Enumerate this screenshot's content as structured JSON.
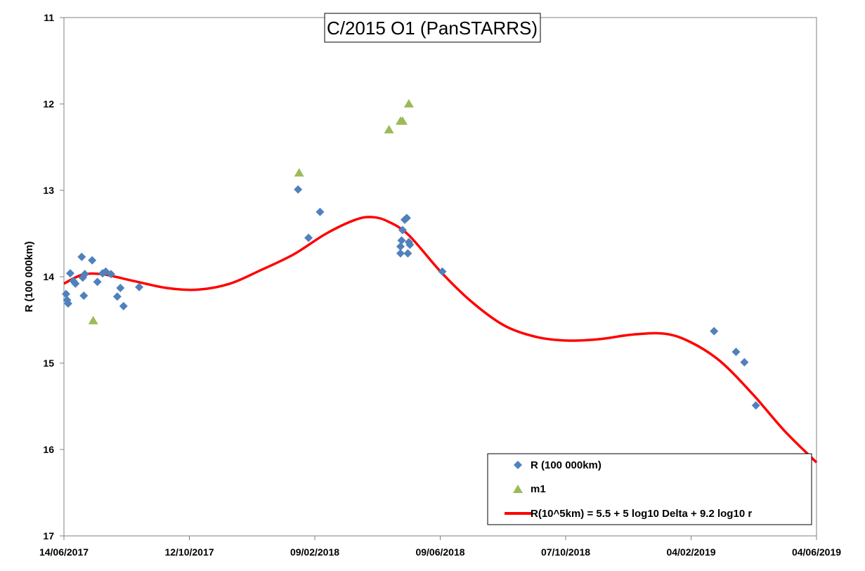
{
  "chart_data": {
    "type": "scatter",
    "title": "C/2015 O1 (PanSTARRS)",
    "xlabel": "",
    "ylabel": "R (100 000km)",
    "x_ticks": [
      "14/06/2017",
      "12/10/2017",
      "09/02/2018",
      "09/06/2018",
      "07/10/2018",
      "04/02/2019",
      "04/06/2019"
    ],
    "xlim": [
      "2017-06-14",
      "2019-06-04"
    ],
    "ylim": [
      11,
      17
    ],
    "y_inverted": true,
    "y_ticks": [
      11,
      12,
      13,
      14,
      15,
      16,
      17
    ],
    "grid": false,
    "legend_position": "bottom-right",
    "colors": {
      "r_series": "#4f81bd",
      "m1_series": "#9bbb59",
      "fit_line": "#ff0000"
    },
    "series": [
      {
        "name": "R (100 000km)",
        "marker": "diamond",
        "points": [
          {
            "x": "2017-06-16",
            "y": 14.2
          },
          {
            "x": "2017-06-17",
            "y": 14.27
          },
          {
            "x": "2017-06-18",
            "y": 14.31
          },
          {
            "x": "2017-06-20",
            "y": 13.96
          },
          {
            "x": "2017-06-23",
            "y": 14.05
          },
          {
            "x": "2017-06-25",
            "y": 14.08
          },
          {
            "x": "2017-07-01",
            "y": 13.77
          },
          {
            "x": "2017-07-02",
            "y": 14.01
          },
          {
            "x": "2017-07-03",
            "y": 14.22
          },
          {
            "x": "2017-07-04",
            "y": 13.97
          },
          {
            "x": "2017-07-11",
            "y": 13.81
          },
          {
            "x": "2017-07-16",
            "y": 14.06
          },
          {
            "x": "2017-07-21",
            "y": 13.96
          },
          {
            "x": "2017-07-24",
            "y": 13.94
          },
          {
            "x": "2017-07-29",
            "y": 13.97
          },
          {
            "x": "2017-08-04",
            "y": 14.23
          },
          {
            "x": "2017-08-07",
            "y": 14.13
          },
          {
            "x": "2017-08-10",
            "y": 14.34
          },
          {
            "x": "2017-08-25",
            "y": 14.12
          },
          {
            "x": "2018-01-24",
            "y": 12.99
          },
          {
            "x": "2018-02-03",
            "y": 13.55
          },
          {
            "x": "2018-02-14",
            "y": 13.25
          },
          {
            "x": "2018-05-02",
            "y": 13.73
          },
          {
            "x": "2018-05-02",
            "y": 13.65
          },
          {
            "x": "2018-05-03",
            "y": 13.58
          },
          {
            "x": "2018-05-04",
            "y": 13.46
          },
          {
            "x": "2018-05-06",
            "y": 13.34
          },
          {
            "x": "2018-05-08",
            "y": 13.32
          },
          {
            "x": "2018-05-09",
            "y": 13.73
          },
          {
            "x": "2018-05-10",
            "y": 13.6
          },
          {
            "x": "2018-05-11",
            "y": 13.63
          },
          {
            "x": "2018-06-11",
            "y": 13.94
          },
          {
            "x": "2019-02-26",
            "y": 14.63
          },
          {
            "x": "2019-03-19",
            "y": 14.87
          },
          {
            "x": "2019-03-27",
            "y": 14.99
          },
          {
            "x": "2019-04-07",
            "y": 15.49
          }
        ]
      },
      {
        "name": "m1",
        "marker": "triangle",
        "points": [
          {
            "x": "2017-07-12",
            "y": 14.51
          },
          {
            "x": "2018-01-25",
            "y": 12.8
          },
          {
            "x": "2018-04-21",
            "y": 12.3
          },
          {
            "x": "2018-05-02",
            "y": 12.2
          },
          {
            "x": "2018-05-04",
            "y": 12.2
          },
          {
            "x": "2018-05-10",
            "y": 12.0
          }
        ]
      },
      {
        "name": "R(10^5km) = 5.5 + 5 log10 Delta + 9.2 log10 r",
        "marker": "line",
        "points": [
          {
            "x": "2017-06-14",
            "y": 14.08
          },
          {
            "x": "2017-07-01",
            "y": 13.98
          },
          {
            "x": "2017-07-20",
            "y": 13.97
          },
          {
            "x": "2017-08-20",
            "y": 14.05
          },
          {
            "x": "2017-09-20",
            "y": 14.13
          },
          {
            "x": "2017-10-20",
            "y": 14.15
          },
          {
            "x": "2017-11-20",
            "y": 14.08
          },
          {
            "x": "2017-12-20",
            "y": 13.92
          },
          {
            "x": "2018-01-20",
            "y": 13.74
          },
          {
            "x": "2018-02-20",
            "y": 13.5
          },
          {
            "x": "2018-03-20",
            "y": 13.34
          },
          {
            "x": "2018-04-05",
            "y": 13.31
          },
          {
            "x": "2018-04-20",
            "y": 13.36
          },
          {
            "x": "2018-05-10",
            "y": 13.52
          },
          {
            "x": "2018-06-10",
            "y": 13.95
          },
          {
            "x": "2018-07-10",
            "y": 14.3
          },
          {
            "x": "2018-08-10",
            "y": 14.57
          },
          {
            "x": "2018-09-10",
            "y": 14.7
          },
          {
            "x": "2018-10-10",
            "y": 14.74
          },
          {
            "x": "2018-11-10",
            "y": 14.72
          },
          {
            "x": "2018-12-10",
            "y": 14.67
          },
          {
            "x": "2019-01-10",
            "y": 14.66
          },
          {
            "x": "2019-02-04",
            "y": 14.76
          },
          {
            "x": "2019-03-04",
            "y": 14.98
          },
          {
            "x": "2019-04-04",
            "y": 15.36
          },
          {
            "x": "2019-05-04",
            "y": 15.78
          },
          {
            "x": "2019-06-04",
            "y": 16.15
          }
        ]
      }
    ]
  }
}
